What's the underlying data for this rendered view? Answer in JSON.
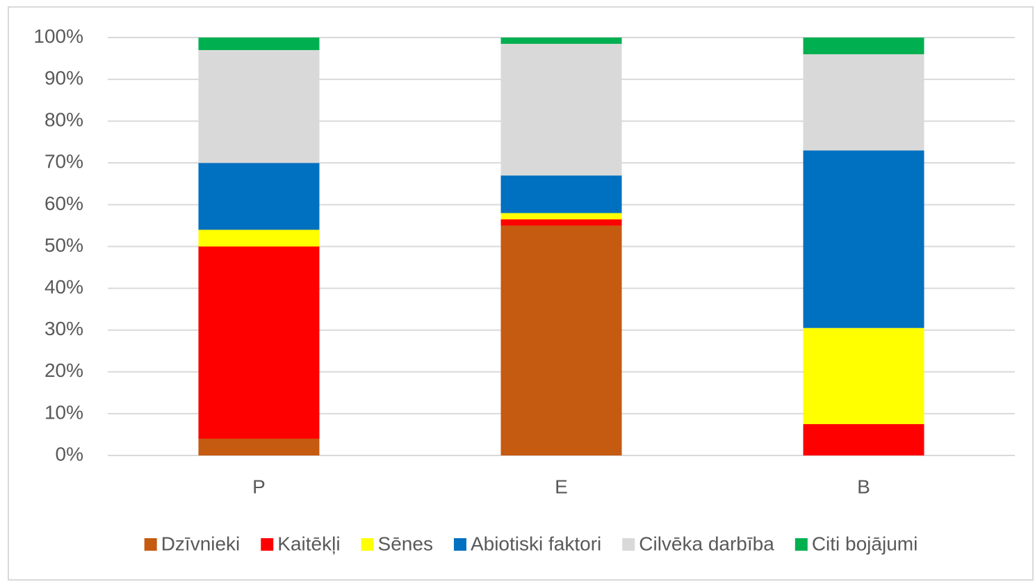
{
  "chart_data": {
    "type": "stacked_bar",
    "categories": [
      "P",
      "E",
      "B"
    ],
    "series": [
      {
        "name": "Dzīvnieki",
        "color": "#c55a11",
        "values": [
          4,
          55,
          0
        ]
      },
      {
        "name": "Kaitēkļi",
        "color": "#ff0000",
        "values": [
          46,
          1.5,
          7.5
        ]
      },
      {
        "name": "Sēnes",
        "color": "#ffff00",
        "values": [
          4,
          1.5,
          23
        ]
      },
      {
        "name": "Abiotiski faktori",
        "color": "#0070c0",
        "values": [
          16,
          9,
          42.5
        ]
      },
      {
        "name": "Cilvēka darbība",
        "color": "#d9d9d9",
        "values": [
          27,
          31.5,
          23
        ]
      },
      {
        "name": "Citi bojājumi",
        "color": "#00b050",
        "values": [
          3,
          1.5,
          4
        ]
      }
    ],
    "ylim": [
      0,
      100
    ],
    "yticks": [
      {
        "value": 0,
        "label": "0%"
      },
      {
        "value": 10,
        "label": "10%"
      },
      {
        "value": 20,
        "label": "20%"
      },
      {
        "value": 30,
        "label": "30%"
      },
      {
        "value": 40,
        "label": "40%"
      },
      {
        "value": 50,
        "label": "50%"
      },
      {
        "value": 60,
        "label": "60%"
      },
      {
        "value": 70,
        "label": "70%"
      },
      {
        "value": 80,
        "label": "80%"
      },
      {
        "value": 90,
        "label": "90%"
      },
      {
        "value": 100,
        "label": "100%"
      }
    ],
    "grid": true,
    "legend": "bottom"
  }
}
